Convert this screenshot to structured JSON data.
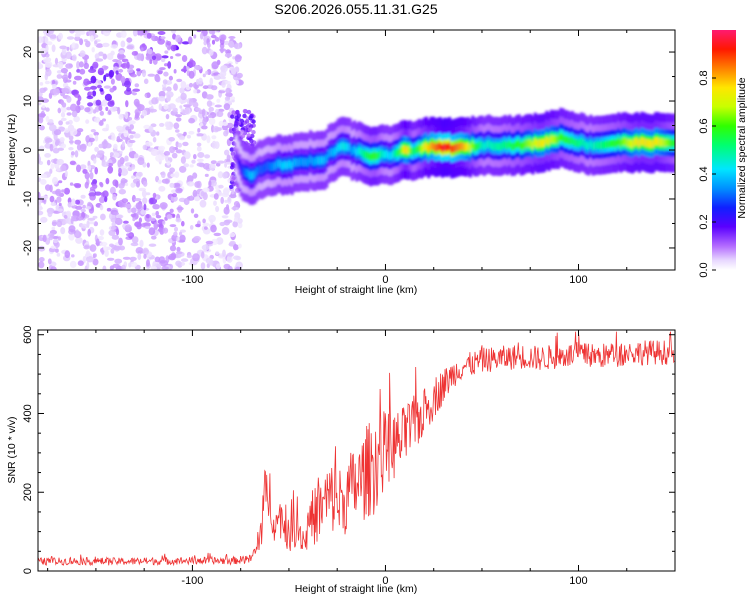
{
  "chart_data": [
    {
      "type": "heatmap",
      "title": "S206.2026.055.11.31.G25",
      "xlabel": "Height of straight line (km)",
      "ylabel": "Frequency (Hz)",
      "xlim": [
        -180,
        150
      ],
      "ylim": [
        -24.5,
        24.5
      ],
      "x_ticks": [
        -100,
        0,
        100
      ],
      "y_ticks": [
        -20,
        -10,
        0,
        10,
        20
      ],
      "colorbar": {
        "label": "Normalized spectral amplitude",
        "range": [
          0,
          1
        ],
        "ticks": [
          "0.0",
          "0.2",
          "0.4",
          "0.6",
          "0.8"
        ],
        "tick_values": [
          0,
          0.2,
          0.4,
          0.6,
          0.8
        ]
      },
      "ridge": {
        "x": [
          -78,
          -74,
          -70,
          -66,
          -62,
          -58,
          -54,
          -50,
          -46,
          -42,
          -38,
          -34,
          -30,
          -26,
          -22,
          -18,
          -14,
          -10,
          -6,
          -2,
          2,
          6,
          10,
          14,
          20,
          30,
          40,
          50,
          60,
          70,
          80,
          85,
          90,
          95,
          100,
          105,
          110,
          120,
          130,
          140,
          150
        ],
        "frequency": [
          -1.5,
          -4.5,
          -5.5,
          -4.0,
          -3.5,
          -3.0,
          -3.0,
          -3.0,
          -2.5,
          -2.5,
          -2.0,
          -2.5,
          -1.0,
          0.0,
          1.0,
          0.0,
          -0.5,
          -1.0,
          -1.5,
          -1.0,
          -1.0,
          -0.5,
          0.0,
          0.0,
          0.5,
          0.5,
          0.5,
          1.0,
          1.0,
          1.0,
          1.5,
          2.0,
          2.5,
          2.0,
          1.5,
          1.0,
          1.0,
          1.5,
          1.5,
          1.5,
          1.5
        ],
        "amplitude": [
          0.15,
          0.3,
          0.4,
          0.3,
          0.3,
          0.35,
          0.4,
          0.4,
          0.35,
          0.35,
          0.35,
          0.4,
          0.35,
          0.4,
          0.45,
          0.35,
          0.45,
          0.55,
          0.6,
          0.45,
          0.4,
          0.55,
          0.8,
          0.5,
          0.75,
          0.95,
          0.8,
          0.45,
          0.5,
          0.6,
          0.75,
          0.7,
          0.6,
          0.55,
          0.5,
          0.45,
          0.5,
          0.6,
          0.75,
          0.75,
          0.55
        ]
      },
      "noise_region": {
        "x_range": [
          -180,
          -75
        ],
        "clusters": [
          {
            "x": -145,
            "frequency": 13.5,
            "amplitude": 0.15
          },
          {
            "x": -105,
            "frequency": 20.5,
            "amplitude": 0.12
          },
          {
            "x": -150,
            "frequency": -8.0,
            "amplitude": 0.08
          },
          {
            "x": -120,
            "frequency": -14.0,
            "amplitude": 0.08
          }
        ]
      }
    },
    {
      "type": "line",
      "xlabel": "Height of straight line (km)",
      "ylabel": "SNR (10 * v/v)",
      "xlim": [
        -180,
        150
      ],
      "ylim": [
        0,
        612
      ],
      "x_ticks": [
        -100,
        0,
        100
      ],
      "y_ticks": [
        0,
        200,
        400,
        600
      ],
      "line_color": "#ee3333",
      "series": [
        {
          "name": "SNR",
          "x": [
            -180,
            -160,
            -140,
            -120,
            -100,
            -80,
            -70,
            -66,
            -63,
            -60,
            -57,
            -54,
            -50,
            -46,
            -42,
            -38,
            -34,
            -30,
            -26,
            -22,
            -18,
            -14,
            -10,
            -6,
            -2,
            0,
            5,
            10,
            15,
            20,
            25,
            30,
            35,
            40,
            45,
            50,
            60,
            70,
            80,
            90,
            100,
            110,
            120,
            130,
            140,
            150
          ],
          "mean": [
            24,
            25,
            24,
            25,
            26,
            26,
            30,
            60,
            170,
            200,
            110,
            140,
            85,
            120,
            75,
            135,
            150,
            185,
            185,
            170,
            210,
            220,
            250,
            270,
            300,
            310,
            320,
            340,
            375,
            400,
            440,
            470,
            500,
            520,
            525,
            535,
            540,
            545,
            540,
            545,
            550,
            545,
            550,
            555,
            555,
            555
          ],
          "spread": [
            12,
            12,
            12,
            12,
            12,
            12,
            14,
            30,
            110,
            90,
            60,
            70,
            50,
            70,
            45,
            90,
            100,
            110,
            120,
            110,
            120,
            130,
            150,
            160,
            140,
            120,
            110,
            100,
            90,
            80,
            70,
            55,
            45,
            40,
            40,
            40,
            40,
            40,
            40,
            40,
            40,
            40,
            40,
            40,
            40,
            40
          ]
        }
      ]
    }
  ]
}
